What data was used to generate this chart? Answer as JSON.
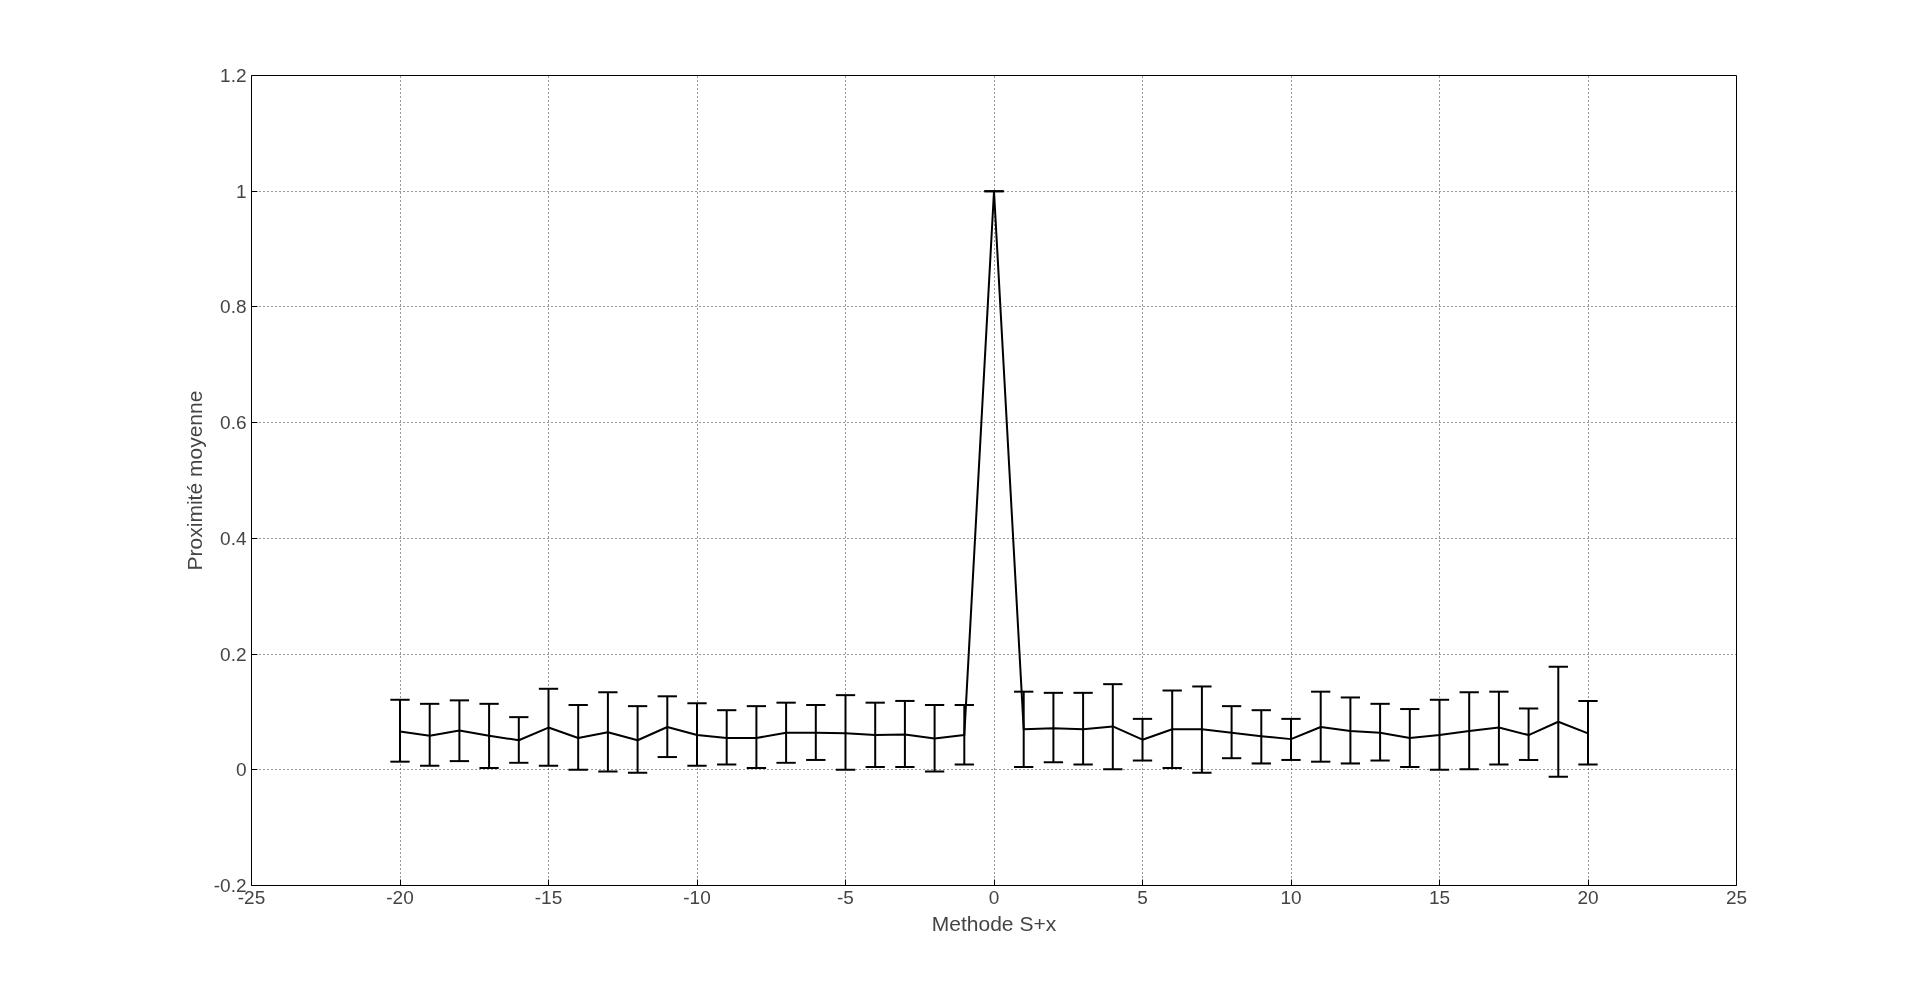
{
  "chart_data": {
    "type": "line",
    "xlabel": "Methode S+x",
    "ylabel": "Proximité moyenne",
    "x": [
      -20,
      -19,
      -18,
      -17,
      -16,
      -15,
      -14,
      -13,
      -12,
      -11,
      -10,
      -9,
      -8,
      -7,
      -6,
      -5,
      -4,
      -3,
      -2,
      -1,
      0,
      1,
      2,
      3,
      4,
      5,
      6,
      7,
      8,
      9,
      10,
      11,
      12,
      13,
      14,
      15,
      16,
      17,
      18,
      19,
      20
    ],
    "series": [
      {
        "color": "#000000",
        "values": [
          0.066,
          0.059,
          0.068,
          0.059,
          0.051,
          0.073,
          0.055,
          0.065,
          0.051,
          0.074,
          0.06,
          0.055,
          0.055,
          0.064,
          0.064,
          0.063,
          0.06,
          0.061,
          0.054,
          0.06,
          1.0,
          0.07,
          0.072,
          0.07,
          0.075,
          0.052,
          0.07,
          0.07,
          0.064,
          0.058,
          0.053,
          0.074,
          0.067,
          0.064,
          0.055,
          0.06,
          0.067,
          0.073,
          0.06,
          0.083,
          0.063
        ],
        "errors": [
          [
            0.014,
            0.121
          ],
          [
            0.007,
            0.114
          ],
          [
            0.015,
            0.12
          ],
          [
            0.003,
            0.114
          ],
          [
            0.012,
            0.091
          ],
          [
            0.007,
            0.14
          ],
          [
            0.0,
            0.112
          ],
          [
            -0.003,
            0.134
          ],
          [
            -0.005,
            0.11
          ],
          [
            0.022,
            0.127
          ],
          [
            0.007,
            0.115
          ],
          [
            0.009,
            0.103
          ],
          [
            0.003,
            0.11
          ],
          [
            0.012,
            0.116
          ],
          [
            0.017,
            0.112
          ],
          [
            0.0,
            0.129
          ],
          [
            0.005,
            0.116
          ],
          [
            0.005,
            0.119
          ],
          [
            -0.003,
            0.112
          ],
          [
            0.009,
            0.112
          ],
          [
            1.0,
            1.0
          ],
          [
            0.005,
            0.135
          ],
          [
            0.013,
            0.133
          ],
          [
            0.009,
            0.133
          ],
          [
            0.001,
            0.148
          ],
          [
            0.016,
            0.088
          ],
          [
            0.003,
            0.137
          ],
          [
            -0.005,
            0.144
          ],
          [
            0.02,
            0.11
          ],
          [
            0.011,
            0.103
          ],
          [
            0.017,
            0.088
          ],
          [
            0.014,
            0.135
          ],
          [
            0.011,
            0.125
          ],
          [
            0.016,
            0.114
          ],
          [
            0.005,
            0.105
          ],
          [
            0.0,
            0.121
          ],
          [
            0.001,
            0.134
          ],
          [
            0.009,
            0.135
          ],
          [
            0.017,
            0.106
          ],
          [
            -0.012,
            0.178
          ],
          [
            0.009,
            0.119
          ]
        ]
      }
    ],
    "xlim": [
      -25,
      25
    ],
    "xticks": [
      -25,
      -20,
      -15,
      -10,
      -5,
      0,
      5,
      10,
      15,
      20,
      25
    ],
    "ylim": [
      -0.2,
      1.2
    ],
    "yticks": [
      -0.2,
      0,
      0.2,
      0.4,
      0.6,
      0.8,
      1,
      1.2
    ],
    "grid": true,
    "line_style": "solid",
    "marker": "none"
  }
}
